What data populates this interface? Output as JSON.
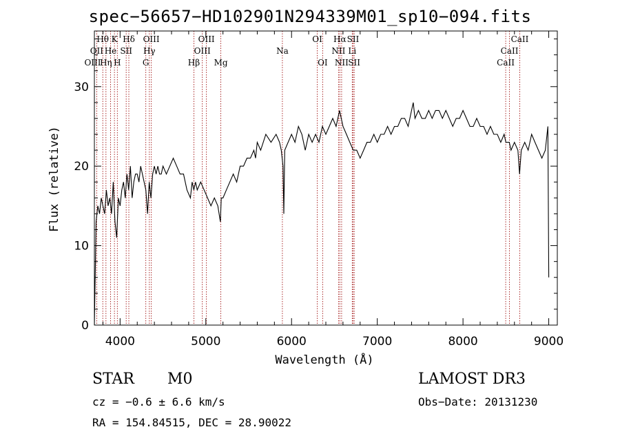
{
  "chart_data": {
    "type": "line",
    "title": "spec−56657−HD102901N294339M01_sp10−094.fits",
    "xlabel": "Wavelength (Å)",
    "ylabel": "Flux (relative)",
    "xlim": [
      3700,
      9100
    ],
    "ylim": [
      0,
      37
    ],
    "x_ticks": [
      4000,
      5000,
      6000,
      7000,
      8000,
      9000
    ],
    "y_ticks": [
      0,
      10,
      20,
      30
    ],
    "series": [
      {
        "name": "flux",
        "x": [
          3700,
          3720,
          3740,
          3760,
          3780,
          3800,
          3820,
          3840,
          3860,
          3880,
          3900,
          3920,
          3940,
          3960,
          3980,
          4000,
          4020,
          4040,
          4060,
          4080,
          4100,
          4120,
          4140,
          4160,
          4180,
          4200,
          4220,
          4240,
          4260,
          4280,
          4300,
          4320,
          4340,
          4360,
          4380,
          4400,
          4420,
          4440,
          4460,
          4480,
          4500,
          4540,
          4580,
          4620,
          4660,
          4700,
          4740,
          4780,
          4820,
          4840,
          4860,
          4880,
          4900,
          4940,
          4980,
          5020,
          5060,
          5100,
          5140,
          5170,
          5180,
          5200,
          5240,
          5280,
          5320,
          5360,
          5400,
          5440,
          5480,
          5520,
          5560,
          5580,
          5600,
          5640,
          5700,
          5760,
          5820,
          5860,
          5880,
          5900,
          5910,
          5920,
          5960,
          6000,
          6040,
          6080,
          6120,
          6160,
          6200,
          6240,
          6280,
          6320,
          6360,
          6400,
          6440,
          6480,
          6520,
          6560,
          6580,
          6600,
          6640,
          6680,
          6720,
          6760,
          6800,
          6840,
          6880,
          6920,
          6960,
          7000,
          7040,
          7080,
          7120,
          7160,
          7200,
          7240,
          7280,
          7320,
          7360,
          7400,
          7420,
          7440,
          7480,
          7520,
          7560,
          7600,
          7640,
          7680,
          7720,
          7760,
          7800,
          7840,
          7880,
          7920,
          7960,
          8000,
          8040,
          8080,
          8120,
          8160,
          8200,
          8240,
          8280,
          8320,
          8360,
          8400,
          8440,
          8480,
          8500,
          8540,
          8560,
          8600,
          8640,
          8660,
          8680,
          8720,
          8760,
          8800,
          8840,
          8880,
          8920,
          8960,
          8990,
          9000
        ],
        "y": [
          0,
          13,
          15,
          14,
          16,
          15,
          14,
          17,
          15,
          16,
          14,
          18,
          13,
          11,
          16,
          15,
          17,
          18,
          16,
          19,
          17,
          20,
          16,
          18,
          19,
          19,
          18,
          20,
          19,
          18,
          17,
          14,
          18,
          16,
          19,
          20,
          19,
          20,
          19,
          19,
          20,
          19,
          20,
          21,
          20,
          19,
          19,
          17,
          16,
          18,
          17,
          18,
          17,
          18,
          17,
          16,
          15,
          16,
          15,
          13,
          16,
          16,
          17,
          18,
          19,
          18,
          20,
          20,
          21,
          21,
          22,
          21,
          23,
          22,
          24,
          23,
          24,
          23,
          22,
          20,
          14,
          22,
          23,
          24,
          23,
          25,
          24,
          22,
          24,
          23,
          24,
          23,
          25,
          24,
          25,
          26,
          25,
          27,
          26,
          25,
          24,
          23,
          22,
          22,
          21,
          22,
          23,
          23,
          24,
          23,
          24,
          24,
          25,
          24,
          25,
          25,
          26,
          26,
          25,
          27,
          28,
          26,
          27,
          26,
          26,
          27,
          26,
          27,
          27,
          26,
          27,
          26,
          25,
          26,
          26,
          27,
          26,
          25,
          25,
          26,
          25,
          25,
          24,
          25,
          24,
          24,
          23,
          24,
          23,
          23,
          22,
          23,
          22,
          19,
          22,
          23,
          22,
          24,
          23,
          22,
          21,
          22,
          25,
          6
        ]
      }
    ],
    "line_markers": [
      {
        "label": "Hθ",
        "x": 3798,
        "row": 1
      },
      {
        "label": "K",
        "x": 3934,
        "row": 1
      },
      {
        "label": "Hδ",
        "x": 4102,
        "row": 1
      },
      {
        "label": "OIII",
        "x": 4364,
        "row": 1
      },
      {
        "label": "OIII",
        "x": 5007,
        "row": 1
      },
      {
        "label": "OI",
        "x": 6300,
        "row": 1
      },
      {
        "label": "Hα",
        "x": 6563,
        "row": 1
      },
      {
        "label": "SII",
        "x": 6717,
        "row": 1
      },
      {
        "label": "CaII",
        "x": 8662,
        "row": 1
      },
      {
        "label": "OII",
        "x": 3727,
        "row": 2
      },
      {
        "label": "He",
        "x": 3889,
        "row": 2
      },
      {
        "label": "SII",
        "x": 4071,
        "row": 2
      },
      {
        "label": "Hγ",
        "x": 4341,
        "row": 2
      },
      {
        "label": "OIII",
        "x": 4959,
        "row": 2
      },
      {
        "label": "Na",
        "x": 5893,
        "row": 2
      },
      {
        "label": "NII",
        "x": 6548,
        "row": 2
      },
      {
        "label": "Li",
        "x": 6708,
        "row": 2
      },
      {
        "label": "CaII",
        "x": 8542,
        "row": 2
      },
      {
        "label": "OIII",
        "x": 3680,
        "row": 3
      },
      {
        "label": "Hη",
        "x": 3835,
        "row": 3
      },
      {
        "label": "H",
        "x": 3968,
        "row": 3
      },
      {
        "label": "G",
        "x": 4300,
        "row": 3
      },
      {
        "label": "Hβ",
        "x": 4861,
        "row": 3
      },
      {
        "label": "Mg",
        "x": 5175,
        "row": 3
      },
      {
        "label": "OI",
        "x": 6363,
        "row": 3
      },
      {
        "label": "NII",
        "x": 6584,
        "row": 3
      },
      {
        "label": "SII",
        "x": 6731,
        "row": 3
      },
      {
        "label": "CaII",
        "x": 8498,
        "row": 3
      }
    ]
  },
  "info": {
    "object_type": "STAR",
    "subclass": "M0",
    "survey": "LAMOST DR3",
    "cz": "cz = −0.6 ± 6.6 km/s",
    "obs_date": "Obs−Date: 20131230",
    "coords": "RA = 154.84515, DEC =  28.90022"
  },
  "colors": {
    "axis": "#000000",
    "spectrum": "#000000",
    "marker_line": "#a01010"
  }
}
